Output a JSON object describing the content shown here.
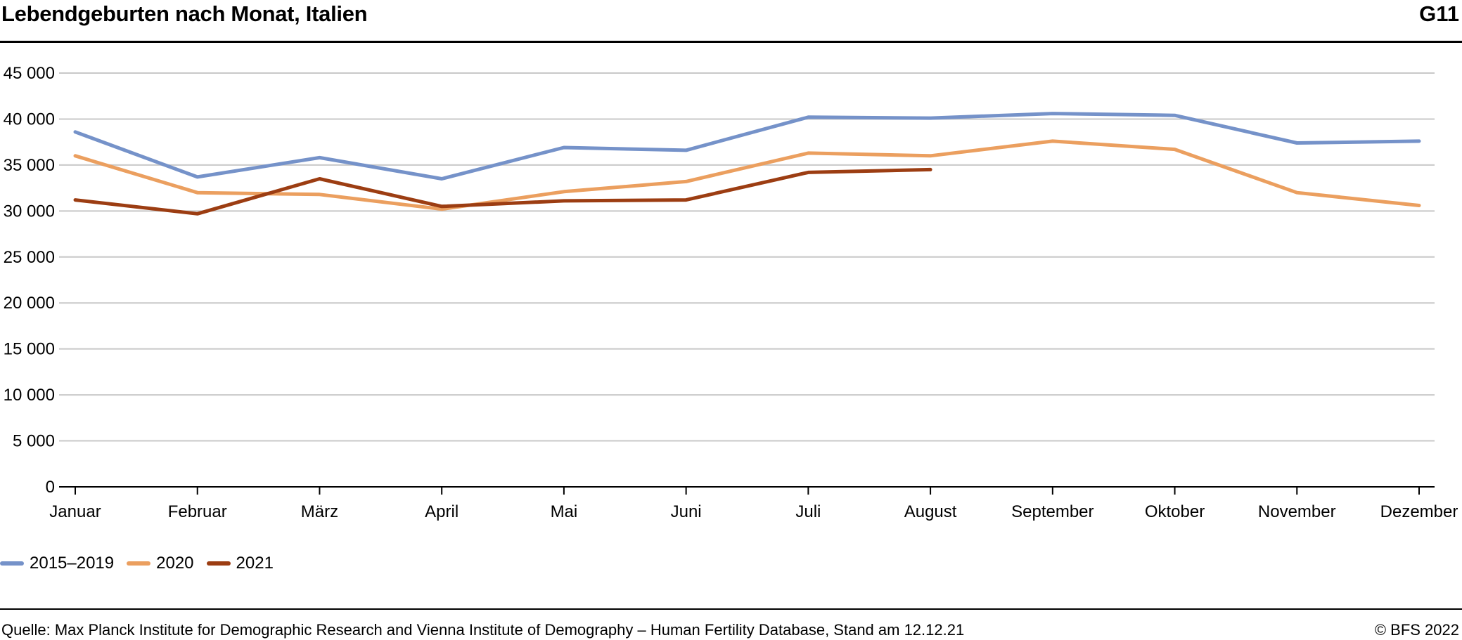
{
  "header": {
    "title": "Lebendgeburten nach Monat, Italien",
    "code": "G11"
  },
  "footer": {
    "source": "Quelle: Max Planck Institute for Demographic Research and Vienna Institute of Demography – Human Fertility Database, Stand am 12.12.21",
    "copyright": "© BFS 2022"
  },
  "chart_data": {
    "type": "line",
    "title": "Lebendgeburten nach Monat, Italien",
    "xlabel": "",
    "ylabel": "",
    "ylim": [
      0,
      45000
    ],
    "yticks": [
      0,
      5000,
      10000,
      15000,
      20000,
      25000,
      30000,
      35000,
      40000,
      45000
    ],
    "ytick_labels": [
      "0",
      "5 000",
      "10 000",
      "15 000",
      "20 000",
      "25 000",
      "30 000",
      "35 000",
      "40 000",
      "45 000"
    ],
    "grid": true,
    "legend_position": "bottom-left",
    "categories": [
      "Januar",
      "Februar",
      "März",
      "April",
      "Mai",
      "Juni",
      "Juli",
      "August",
      "September",
      "Oktober",
      "November",
      "Dezember"
    ],
    "series": [
      {
        "name": "2015–2019",
        "color": "#7592c9",
        "values": [
          38600,
          33700,
          35800,
          33500,
          36900,
          36600,
          40200,
          40100,
          40600,
          40400,
          37400,
          37600
        ]
      },
      {
        "name": "2020",
        "color": "#eb9f5f",
        "values": [
          36000,
          32000,
          31800,
          30200,
          32100,
          33200,
          36300,
          36000,
          37600,
          36700,
          32000,
          30600
        ]
      },
      {
        "name": "2021",
        "color": "#9c3d12",
        "values": [
          31200,
          29700,
          33500,
          30500,
          31100,
          31200,
          34200,
          34500,
          null,
          null,
          null,
          null
        ]
      }
    ]
  }
}
